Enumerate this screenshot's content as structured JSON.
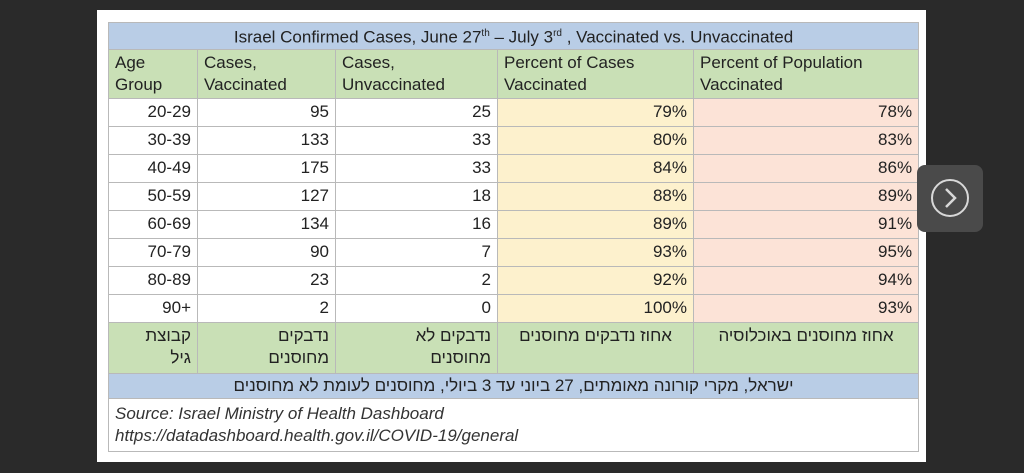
{
  "table": {
    "title": {
      "parts": [
        "Israel Confirmed Cases, June 27",
        "th",
        " – July 3",
        "rd",
        " , Vaccinated vs. Unvaccinated"
      ]
    },
    "header": [
      [
        "Age",
        "Group"
      ],
      [
        "Cases,",
        "Vaccinated"
      ],
      [
        "Cases,",
        "Unvaccinated"
      ],
      [
        "Percent of Cases",
        "Vaccinated"
      ],
      [
        "Percent of Population",
        "Vaccinated"
      ]
    ],
    "rows": [
      [
        "20-29",
        "95",
        "25",
        "79%",
        "78%"
      ],
      [
        "30-39",
        "133",
        "33",
        "80%",
        "83%"
      ],
      [
        "40-49",
        "175",
        "33",
        "84%",
        "86%"
      ],
      [
        "50-59",
        "127",
        "18",
        "88%",
        "89%"
      ],
      [
        "60-69",
        "134",
        "16",
        "89%",
        "91%"
      ],
      [
        "70-79",
        "90",
        "7",
        "93%",
        "95%"
      ],
      [
        "80-89",
        "23",
        "2",
        "92%",
        "94%"
      ],
      [
        "90+",
        "2",
        "0",
        "100%",
        "93%"
      ]
    ],
    "hebrew_header": [
      [
        "קבוצת",
        "גיל"
      ],
      [
        "נדבקים",
        "מחוסנים"
      ],
      [
        "נדבקים לא",
        "מחוסנים"
      ],
      [
        "אחוז נדבקים מחוסנים"
      ],
      [
        "אחוז מחוסנים באוכלוסיה"
      ]
    ],
    "hebrew_title": "ישראל, מקרי קורונה מאומתים, 27 ביוני עד 3 ביולי, מחוסנים לעומת לא מחוסנים",
    "source": [
      "Source: Israel Ministry of Health Dashboard",
      "https://datadashboard.health.gov.il/COVID-19/general"
    ]
  }
}
